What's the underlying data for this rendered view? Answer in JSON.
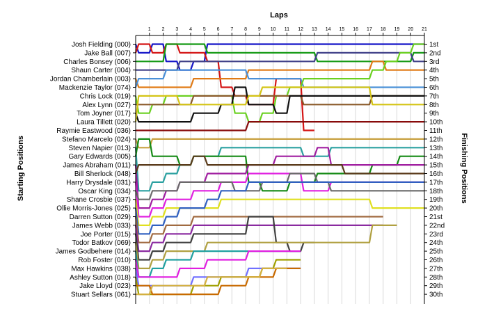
{
  "chart_data": {
    "type": "line",
    "title": "",
    "xlabel": "Laps",
    "ylabel_left": "Starting Positions",
    "ylabel_right": "Finishing Positions",
    "x": [
      1,
      2,
      3,
      4,
      5,
      6,
      7,
      8,
      9,
      10,
      11,
      12,
      13,
      14,
      15,
      16,
      17,
      18,
      19,
      20,
      21
    ],
    "drivers": [
      "Josh Fielding (000)",
      "Jake Ball (007)",
      "Charles Bonsey (006)",
      "Shaun Carter (004)",
      "Jordan Chamberlain (003)",
      "Mackenzie Taylor (074)",
      "Chris Lock (019)",
      "Alex Lynn (027)",
      "Tom Joyner (017)",
      "Laura Tillett (020)",
      "Raymie Eastwood (036)",
      "Stefano Marcelo (024)",
      "Steven Napier (013)",
      "Gary Edwards (005)",
      "James Abraham (011)",
      "Bill Sherlock (048)",
      "Harry Drysdale (031)",
      "Oscar King (034)",
      "Shane Crosbie (037)",
      "Ollie Morris-Jones (025)",
      "Darren Sutton (029)",
      "James Webb (033)",
      "Joe Porter (015)",
      "Todor Batkov (069)",
      "James Godbehere (014)",
      "Rob Foster (010)",
      "Max Hawkins (038)",
      "Ashley Sutton (018)",
      "Jake Lloyd (023)",
      "Stuart Sellars (061)"
    ],
    "finishing_labels": [
      "1st",
      "2nd",
      "3rd",
      "4th",
      "5th",
      "6th",
      "7th",
      "8th",
      "9th",
      "10th",
      "11th",
      "12th",
      "13th",
      "14th",
      "15th",
      "16th",
      "17th",
      "18th",
      "19th",
      "20th",
      "21st",
      "22nd",
      "23rd",
      "24th",
      "25th",
      "26th",
      "27th",
      "28th",
      "29th",
      "30th"
    ],
    "series": [
      {
        "color": "#1515c8",
        "start": 1,
        "positions": [
          2,
          1,
          3,
          4,
          3,
          1,
          1,
          1,
          1,
          1,
          1,
          1,
          1,
          1,
          1,
          1,
          1,
          1,
          1,
          1,
          1
        ]
      },
      {
        "color": "#d41515",
        "start": 2,
        "positions": [
          1,
          2,
          1,
          2,
          2,
          3,
          6,
          7,
          8,
          8,
          5,
          5,
          11
        ]
      },
      {
        "color": "#159a15",
        "start": 3,
        "positions": [
          3,
          3,
          1,
          1,
          1,
          2,
          2,
          2,
          2,
          2,
          2,
          2,
          2,
          3,
          3,
          3,
          3,
          3,
          3,
          3,
          2
        ]
      },
      {
        "color": "#404088",
        "start": 4,
        "positions": [
          4,
          4,
          4,
          3,
          3,
          3,
          3,
          3,
          3,
          3,
          3,
          3,
          3,
          2,
          2,
          2,
          2,
          2,
          2,
          2,
          3
        ]
      },
      {
        "color": "#e07a15",
        "start": 5,
        "positions": [
          6,
          6,
          6,
          6,
          5,
          5,
          5,
          5,
          4,
          4,
          4,
          4,
          4,
          4,
          4,
          4,
          4,
          3,
          4,
          4,
          4
        ]
      },
      {
        "color": "#4a90d8",
        "start": 6,
        "positions": [
          5,
          5,
          4,
          4,
          4,
          4,
          4,
          4,
          5,
          5,
          5,
          5,
          6,
          6,
          6,
          6,
          6,
          6,
          6,
          6,
          6
        ]
      },
      {
        "color": "#6ad020",
        "start": 7,
        "positions": [
          9,
          8,
          7,
          7,
          7,
          7,
          7,
          9,
          10,
          9,
          7,
          6,
          5,
          5,
          5,
          5,
          5,
          4,
          3,
          2,
          1
        ]
      },
      {
        "color": "#8a5a2a",
        "start": 8,
        "positions": [
          8,
          8,
          8,
          8,
          7,
          7,
          7,
          7,
          7,
          7,
          7,
          7,
          8,
          8,
          8,
          8,
          8,
          7,
          7,
          7,
          7
        ]
      },
      {
        "color": "#101010",
        "start": 9,
        "positions": [
          10,
          10,
          10,
          10,
          9,
          9,
          8,
          6,
          8,
          8,
          9,
          7,
          7,
          7,
          7,
          7,
          7,
          7,
          7,
          7,
          7
        ]
      },
      {
        "color": "#d4c415",
        "start": 10,
        "positions": [
          7,
          7,
          7,
          8,
          8,
          8,
          8,
          8,
          7,
          6,
          6,
          6,
          6,
          6,
          6,
          6,
          6,
          8,
          8,
          8,
          8
        ]
      },
      {
        "color": "#880a0a",
        "start": 11,
        "positions": [
          11,
          11,
          11,
          11,
          11,
          11,
          11,
          11,
          10,
          10,
          10,
          10,
          10,
          10,
          10,
          10,
          10,
          10,
          10,
          10,
          10
        ]
      },
      {
        "color": "#c8a040",
        "start": 12,
        "positions": [
          13,
          12,
          12,
          12,
          12,
          12,
          12,
          12,
          12,
          12,
          12,
          12,
          12,
          12,
          12,
          12,
          12,
          12,
          12,
          12,
          12
        ]
      },
      {
        "color": "#2aa0a0",
        "start": 13,
        "positions": [
          18,
          17,
          16,
          15,
          14,
          14,
          13,
          13,
          13,
          13,
          13,
          13,
          14,
          14,
          13,
          13,
          13,
          13,
          13,
          13,
          13
        ]
      },
      {
        "color": "#158a15",
        "start": 14,
        "positions": [
          12,
          14,
          14,
          15,
          14,
          14,
          14,
          14,
          17,
          18,
          18,
          17,
          17,
          16,
          16,
          16,
          16,
          15,
          15,
          14,
          14
        ]
      },
      {
        "color": "#a01ea0",
        "start": 15,
        "positions": [
          20,
          19,
          18,
          17,
          17,
          16,
          16,
          16,
          15,
          15,
          14,
          14,
          14,
          13,
          15,
          15,
          15,
          15,
          15,
          15,
          15
        ]
      },
      {
        "color": "#5a3a1a",
        "start": 16,
        "positions": [
          15,
          15,
          15,
          15,
          14,
          15,
          15,
          15,
          15,
          15,
          15,
          15,
          15,
          15,
          15,
          16,
          16,
          16,
          16,
          16,
          16
        ]
      },
      {
        "color": "#e020e0",
        "start": 17,
        "positions": [
          21,
          20,
          19,
          19,
          18,
          18,
          17,
          17,
          16,
          16,
          16,
          16,
          18,
          18,
          17,
          17,
          17,
          17,
          17,
          17,
          17
        ]
      },
      {
        "color": "#6a6a6a",
        "start": 18,
        "positions": [
          19,
          18,
          18,
          17,
          17,
          17,
          17,
          18,
          18,
          17,
          17,
          16,
          16,
          17,
          18,
          18,
          18,
          18,
          18,
          18,
          18
        ]
      },
      {
        "color": "#e0e020",
        "start": 19,
        "positions": [
          22,
          21,
          20,
          20,
          20,
          20,
          19,
          19,
          19,
          19,
          19,
          19,
          19,
          19,
          19,
          19,
          19,
          20,
          20,
          20,
          20
        ]
      },
      {
        "color": "#3060c0",
        "start": 20,
        "positions": [
          23,
          22,
          21,
          20,
          20,
          19,
          18,
          18,
          17,
          17,
          17,
          17,
          17,
          17,
          17,
          17,
          17,
          17,
          17,
          17,
          17
        ]
      },
      {
        "color": "#a06a40",
        "start": 21,
        "positions": [
          24,
          23,
          22,
          22,
          21,
          21,
          21,
          21,
          21,
          21,
          21,
          21,
          21,
          21,
          21,
          21,
          21,
          21
        ]
      },
      {
        "color": "#8a2aa0",
        "start": 22,
        "positions": [
          25,
          24,
          23,
          23,
          22,
          22,
          22,
          22,
          22,
          22,
          22,
          22,
          22,
          22,
          22,
          22,
          22,
          22
        ]
      },
      {
        "color": "#404040",
        "start": 23,
        "positions": [
          26,
          25,
          24,
          24,
          23,
          23,
          23,
          23,
          21,
          21,
          24,
          25,
          24
        ]
      },
      {
        "color": "#b0a040",
        "start": 24,
        "positions": [
          27,
          26,
          25,
          25,
          25,
          24,
          24,
          24,
          24,
          24,
          24,
          24,
          24,
          24,
          24,
          24,
          24,
          22,
          22
        ]
      },
      {
        "color": "#20a0a0",
        "start": 25,
        "positions": [
          28,
          27,
          26,
          26,
          25,
          25,
          25,
          25,
          25,
          25,
          25,
          25
        ]
      },
      {
        "color": "#e01ee0",
        "start": 26,
        "positions": [
          28,
          28,
          28,
          27,
          27,
          26,
          26,
          26,
          25,
          25,
          25,
          25
        ]
      },
      {
        "color": "#7070ff",
        "start": 27,
        "positions": [
          29,
          29,
          29,
          29,
          28,
          28,
          28,
          28,
          27,
          27,
          27,
          27
        ]
      },
      {
        "color": "#a0a000",
        "start": 28,
        "positions": [
          30,
          30,
          30,
          30,
          29,
          29,
          28,
          28,
          28,
          27,
          26,
          26
        ]
      },
      {
        "color": "#c86a00",
        "start": 29,
        "positions": [
          29,
          30,
          30,
          30,
          30,
          30,
          29,
          29,
          28,
          28,
          27,
          27
        ]
      },
      {
        "color": "#d4b040",
        "start": 30,
        "positions": [
          30,
          29,
          29,
          29,
          29,
          28,
          28,
          28,
          28,
          27,
          27
        ]
      }
    ]
  }
}
